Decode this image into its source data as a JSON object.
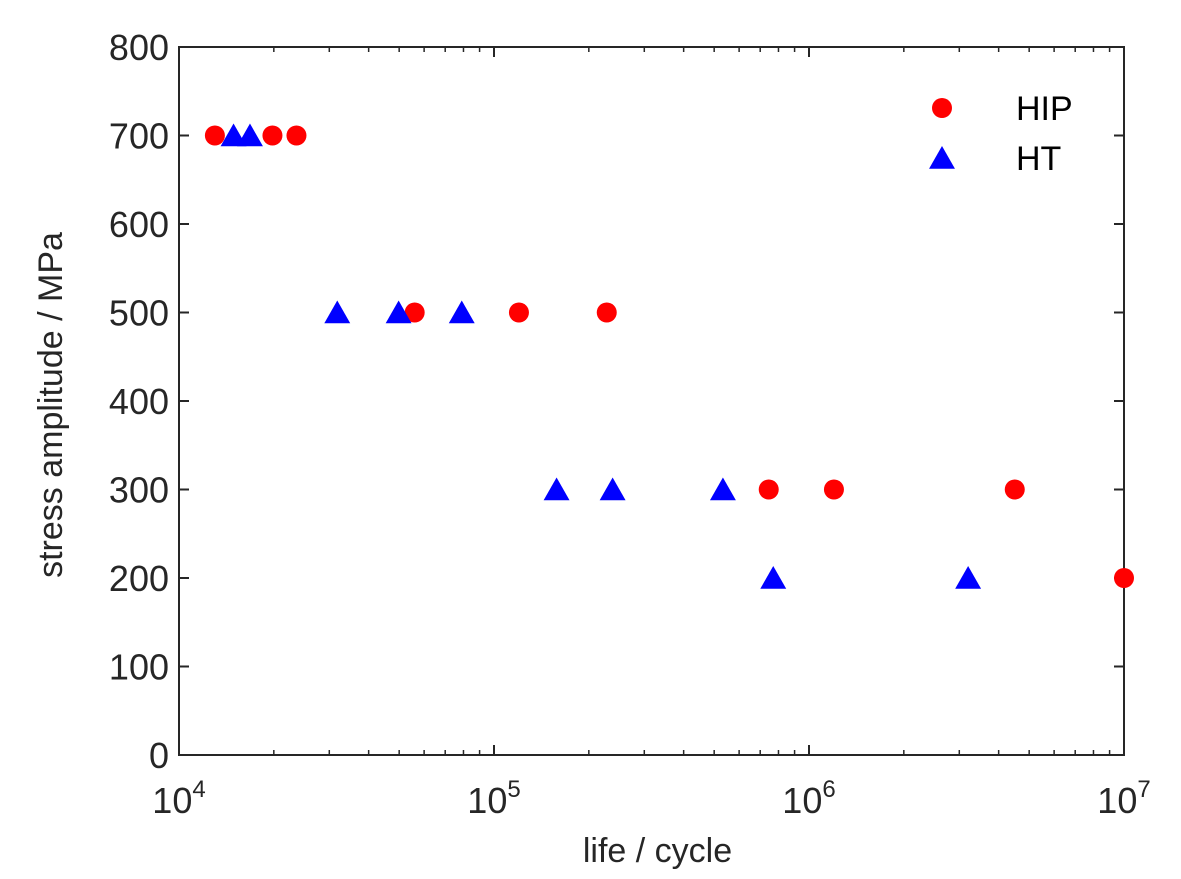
{
  "chart_data": {
    "type": "scatter",
    "xlabel": "life / cycle",
    "ylabel": "stress amplitude / MPa",
    "xscale": "log",
    "xlim": [
      10000,
      10000000
    ],
    "ylim": [
      0,
      800
    ],
    "x_ticks": [
      {
        "value": 10000,
        "base": "10",
        "exp": "4"
      },
      {
        "value": 100000,
        "base": "10",
        "exp": "5"
      },
      {
        "value": 1000000,
        "base": "10",
        "exp": "6"
      },
      {
        "value": 10000000,
        "base": "10",
        "exp": "7"
      }
    ],
    "y_ticks": [
      {
        "value": 0,
        "label": "0"
      },
      {
        "value": 100,
        "label": "100"
      },
      {
        "value": 200,
        "label": "200"
      },
      {
        "value": 300,
        "label": "300"
      },
      {
        "value": 400,
        "label": "400"
      },
      {
        "value": 500,
        "label": "500"
      },
      {
        "value": 600,
        "label": "600"
      },
      {
        "value": 700,
        "label": "700"
      },
      {
        "value": 800,
        "label": "800"
      }
    ],
    "grid": false,
    "legend_position": "top-right",
    "series": [
      {
        "name": "HIP",
        "marker": "circle",
        "color": "#ff0000",
        "points": [
          {
            "x": 13000,
            "y": 700
          },
          {
            "x": 19800,
            "y": 700
          },
          {
            "x": 23600,
            "y": 700
          },
          {
            "x": 56000,
            "y": 500
          },
          {
            "x": 120000,
            "y": 500
          },
          {
            "x": 228000,
            "y": 500
          },
          {
            "x": 745000,
            "y": 300
          },
          {
            "x": 1200000,
            "y": 300
          },
          {
            "x": 4500000,
            "y": 300
          },
          {
            "x": 10000000,
            "y": 200
          }
        ]
      },
      {
        "name": "HT",
        "marker": "triangle",
        "color": "#0000ff",
        "points": [
          {
            "x": 14900,
            "y": 700
          },
          {
            "x": 16800,
            "y": 700
          },
          {
            "x": 31800,
            "y": 500
          },
          {
            "x": 49800,
            "y": 500
          },
          {
            "x": 79000,
            "y": 500
          },
          {
            "x": 158000,
            "y": 300
          },
          {
            "x": 238000,
            "y": 300
          },
          {
            "x": 533000,
            "y": 300
          },
          {
            "x": 770000,
            "y": 200
          },
          {
            "x": 3200000,
            "y": 200
          }
        ]
      }
    ]
  }
}
